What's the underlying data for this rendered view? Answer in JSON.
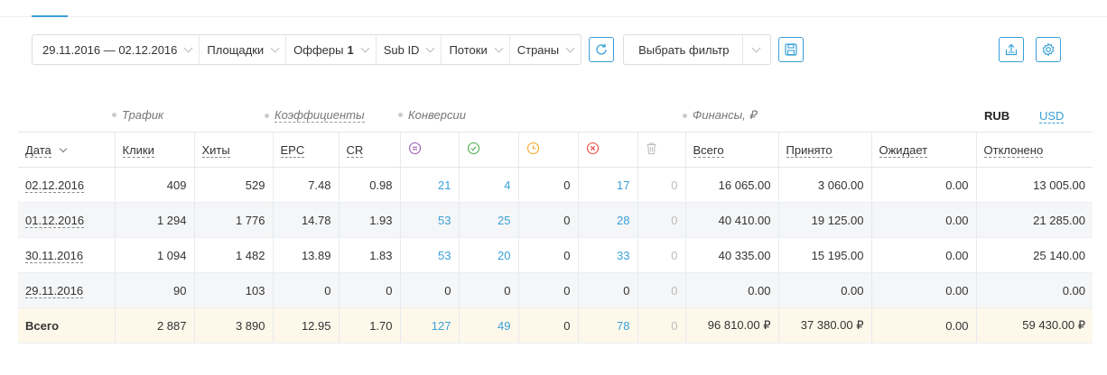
{
  "filters": {
    "date_range": "29.11.2016 — 02.12.2016",
    "platforms": "Площадки",
    "offers": "Офферы",
    "offers_count": "1",
    "subid": "Sub ID",
    "streams": "Потоки",
    "countries": "Страны",
    "preset_label": "Выбрать фильтр"
  },
  "sections": {
    "traffic": "Трафик",
    "ratios": "Коэффициенты",
    "conversions": "Конверсии",
    "finance": "Финансы, ₽"
  },
  "currency": {
    "rub": "RUB",
    "usd": "USD"
  },
  "columns": {
    "date": "Дата",
    "clicks": "Клики",
    "hits": "Хиты",
    "epc": "EPC",
    "cr": "CR",
    "total": "Всего",
    "accepted": "Принято",
    "pending": "Ожидает",
    "rejected": "Отклонено"
  },
  "icons": {
    "conv_all": "list-circle-icon",
    "conv_ok": "check-circle-icon",
    "conv_wait": "clock-circle-icon",
    "conv_rej": "x-circle-icon",
    "conv_trash": "trash-icon",
    "export": "export-icon",
    "settings": "gear-icon",
    "refresh": "refresh-icon",
    "save": "save-icon"
  },
  "colors": {
    "accent": "#3aa0d8",
    "conv_all": "#9b59b6",
    "conv_ok": "#4caf50",
    "conv_wait": "#f5a623",
    "conv_rej": "#e74c3c",
    "total_row_bg": "#fdf8ea"
  },
  "rows": [
    {
      "date": "02.12.2016",
      "clicks": "409",
      "hits": "529",
      "epc": "7.48",
      "cr": "0.98",
      "c_all": "21",
      "c_ok": "4",
      "c_wait": "0",
      "c_rej": "17",
      "c_trash": "0",
      "fin_total": "16 065.00",
      "fin_accepted": "3 060.00",
      "fin_pending": "0.00",
      "fin_rejected": "13 005.00"
    },
    {
      "date": "01.12.2016",
      "clicks": "1 294",
      "hits": "1 776",
      "epc": "14.78",
      "cr": "1.93",
      "c_all": "53",
      "c_ok": "25",
      "c_wait": "0",
      "c_rej": "28",
      "c_trash": "0",
      "fin_total": "40 410.00",
      "fin_accepted": "19 125.00",
      "fin_pending": "0.00",
      "fin_rejected": "21 285.00"
    },
    {
      "date": "30.11.2016",
      "clicks": "1 094",
      "hits": "1 482",
      "epc": "13.89",
      "cr": "1.83",
      "c_all": "53",
      "c_ok": "20",
      "c_wait": "0",
      "c_rej": "33",
      "c_trash": "0",
      "fin_total": "40 335.00",
      "fin_accepted": "15 195.00",
      "fin_pending": "0.00",
      "fin_rejected": "25 140.00"
    },
    {
      "date": "29.11.2016",
      "clicks": "90",
      "hits": "103",
      "epc": "0",
      "cr": "0",
      "c_all": "0",
      "c_ok": "0",
      "c_wait": "0",
      "c_rej": "0",
      "c_trash": "0",
      "fin_total": "0.00",
      "fin_accepted": "0.00",
      "fin_pending": "0.00",
      "fin_rejected": "0.00"
    }
  ],
  "total": {
    "label": "Всего",
    "clicks": "2 887",
    "hits": "3 890",
    "epc": "12.95",
    "cr": "1.70",
    "c_all": "127",
    "c_ok": "49",
    "c_wait": "0",
    "c_rej": "78",
    "c_trash": "0",
    "fin_total": "96 810.00 ₽",
    "fin_accepted": "37 380.00 ₽",
    "fin_pending": "0.00",
    "fin_rejected": "59 430.00 ₽"
  }
}
